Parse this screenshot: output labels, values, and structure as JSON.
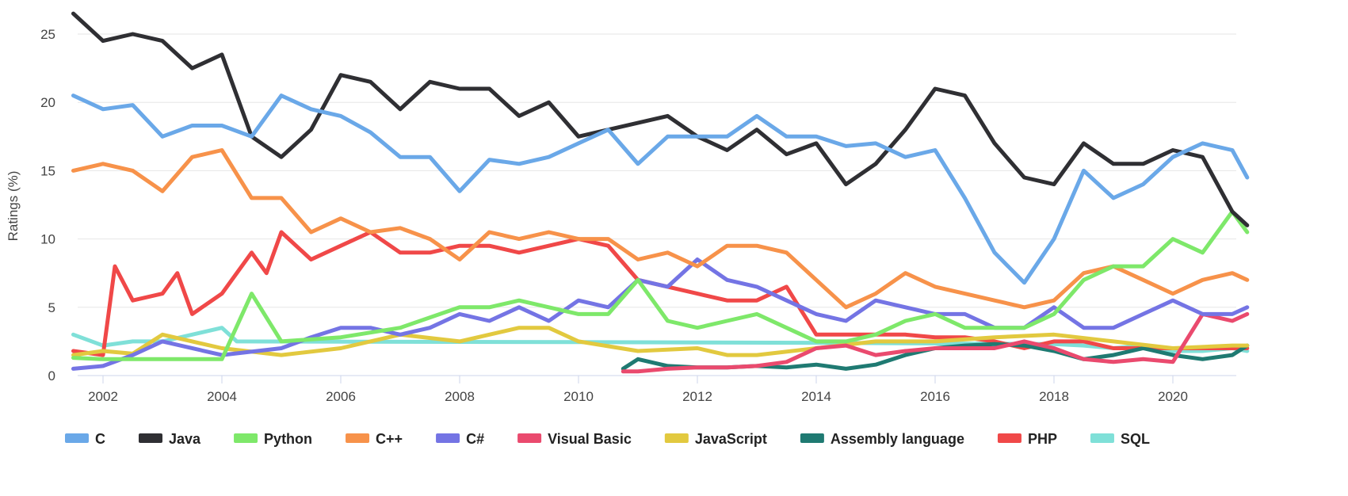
{
  "chart_data": {
    "type": "line",
    "title": "",
    "xlabel": "",
    "ylabel": "Ratings (%)",
    "xlim": [
      2001.5,
      2021.3
    ],
    "ylim": [
      0,
      25
    ],
    "yticks": [
      "0",
      "5",
      "10",
      "15",
      "20",
      "25"
    ],
    "xticks": [
      "2002",
      "2004",
      "2006",
      "2008",
      "2010",
      "2012",
      "2014",
      "2016",
      "2018",
      "2020"
    ],
    "grid": "horizontal",
    "legend_position": "bottom",
    "series": [
      {
        "name": "C",
        "color": "#6aa8e8",
        "x": [
          2001.5,
          2002,
          2002.5,
          2003,
          2003.5,
          2004,
          2004.5,
          2005,
          2005.5,
          2006,
          2006.5,
          2007,
          2007.5,
          2008,
          2008.5,
          2009,
          2009.5,
          2010,
          2010.5,
          2011,
          2011.5,
          2012,
          2012.5,
          2013,
          2013.5,
          2014,
          2014.5,
          2015,
          2015.5,
          2016,
          2016.5,
          2017,
          2017.5,
          2018,
          2018.5,
          2019,
          2019.5,
          2020,
          2020.5,
          2021,
          2021.25
        ],
        "y": [
          20.5,
          19.5,
          19.8,
          17.5,
          18.3,
          18.3,
          17.5,
          20.5,
          19.5,
          19,
          17.8,
          16,
          16,
          13.5,
          15.8,
          15.5,
          16,
          17,
          18,
          15.5,
          17.5,
          17.5,
          17.5,
          19,
          17.5,
          17.5,
          16.8,
          17,
          16,
          16.5,
          13,
          9,
          6.8,
          10,
          15,
          13,
          14,
          16,
          17,
          16.5,
          14.5
        ]
      },
      {
        "name": "Java",
        "color": "#2f2f33",
        "x": [
          2001.5,
          2002,
          2002.5,
          2003,
          2003.5,
          2004,
          2004.5,
          2005,
          2005.5,
          2006,
          2006.5,
          2007,
          2007.5,
          2008,
          2008.5,
          2009,
          2009.5,
          2010,
          2010.5,
          2011,
          2011.5,
          2012,
          2012.5,
          2013,
          2013.5,
          2014,
          2014.5,
          2015,
          2015.5,
          2016,
          2016.5,
          2017,
          2017.5,
          2018,
          2018.5,
          2019,
          2019.5,
          2020,
          2020.5,
          2021,
          2021.25
        ],
        "y": [
          26.5,
          24.5,
          25,
          24.5,
          22.5,
          23.5,
          17.5,
          16,
          18,
          22,
          21.5,
          19.5,
          21.5,
          21,
          21,
          19,
          20,
          17.5,
          18,
          18.5,
          19,
          17.5,
          16.5,
          18,
          16.2,
          17,
          14,
          15.5,
          18,
          21,
          20.5,
          17,
          14.5,
          14,
          17,
          15.5,
          15.5,
          16.5,
          16,
          12,
          11
        ]
      },
      {
        "name": "Python",
        "color": "#7ee86a",
        "x": [
          2001.5,
          2002,
          2003,
          2004,
          2004.5,
          2005,
          2006,
          2007,
          2008,
          2008.5,
          2009,
          2009.5,
          2010,
          2010.5,
          2011,
          2011.5,
          2012,
          2012.5,
          2013,
          2013.5,
          2014,
          2014.5,
          2015,
          2015.5,
          2016,
          2016.5,
          2017,
          2017.5,
          2018,
          2018.5,
          2019,
          2019.5,
          2020,
          2020.5,
          2021,
          2021.25
        ],
        "y": [
          1.3,
          1.2,
          1.2,
          1.2,
          6,
          2.5,
          2.8,
          3.5,
          5,
          5,
          5.5,
          5,
          4.5,
          4.5,
          7,
          4,
          3.5,
          4,
          4.5,
          3.5,
          2.5,
          2.5,
          3,
          4,
          4.5,
          3.5,
          3.5,
          3.5,
          4.5,
          7,
          8,
          8,
          10,
          9,
          12,
          10.5
        ]
      },
      {
        "name": "C++",
        "color": "#f7924a",
        "x": [
          2001.5,
          2002,
          2002.5,
          2003,
          2003.5,
          2004,
          2004.5,
          2005,
          2005.5,
          2006,
          2006.5,
          2007,
          2007.5,
          2008,
          2008.5,
          2009,
          2009.5,
          2010,
          2010.5,
          2011,
          2011.5,
          2012,
          2012.5,
          2013,
          2013.5,
          2014,
          2014.5,
          2015,
          2015.5,
          2016,
          2016.5,
          2017,
          2017.5,
          2018,
          2018.5,
          2019,
          2019.5,
          2020,
          2020.5,
          2021,
          2021.25
        ],
        "y": [
          15,
          15.5,
          15,
          13.5,
          16,
          16.5,
          13,
          13,
          10.5,
          11.5,
          10.5,
          10.8,
          10,
          8.5,
          10.5,
          10,
          10.5,
          10,
          10,
          8.5,
          9,
          8,
          9.5,
          9.5,
          9,
          7,
          5,
          6,
          7.5,
          6.5,
          6,
          5.5,
          5,
          5.5,
          7.5,
          8,
          7,
          6,
          7,
          7.5,
          7
        ]
      },
      {
        "name": "C#",
        "color": "#7474e4",
        "x": [
          2001.5,
          2002,
          2002.5,
          2003,
          2004,
          2005,
          2005.5,
          2006,
          2006.5,
          2007,
          2007.5,
          2008,
          2008.5,
          2009,
          2009.5,
          2010,
          2010.5,
          2011,
          2011.5,
          2012,
          2012.5,
          2013,
          2013.5,
          2014,
          2014.5,
          2015,
          2015.5,
          2016,
          2016.5,
          2017,
          2017.5,
          2018,
          2018.5,
          2019,
          2019.5,
          2020,
          2020.5,
          2021,
          2021.25
        ],
        "y": [
          0.5,
          0.7,
          1.5,
          2.5,
          1.5,
          2,
          2.8,
          3.5,
          3.5,
          3,
          3.5,
          4.5,
          4,
          5,
          4,
          5.5,
          5,
          7,
          6.5,
          8.5,
          7,
          6.5,
          5.5,
          4.5,
          4,
          5.5,
          5,
          4.5,
          4.5,
          3.5,
          3.5,
          5,
          3.5,
          3.5,
          4.5,
          5.5,
          4.5,
          4.5,
          5
        ]
      },
      {
        "name": "Visual Basic",
        "color": "#ea4a6e",
        "x": [
          2010.75,
          2011,
          2011.5,
          2012,
          2012.5,
          2013,
          2013.5,
          2014,
          2014.5,
          2015,
          2015.5,
          2016,
          2016.5,
          2017,
          2017.5,
          2018,
          2018.5,
          2019,
          2019.5,
          2020,
          2020.5,
          2021,
          2021.25
        ],
        "y": [
          0.3,
          0.3,
          0.5,
          0.6,
          0.6,
          0.7,
          1,
          2,
          2.2,
          1.5,
          1.8,
          2,
          2,
          2,
          2.5,
          2,
          1.2,
          1,
          1.2,
          1,
          4.5,
          4,
          4.5
        ]
      },
      {
        "name": "JavaScript",
        "color": "#e2c93f",
        "x": [
          2001.5,
          2002,
          2002.5,
          2003,
          2004,
          2005,
          2006,
          2007,
          2008,
          2009,
          2009.5,
          2010,
          2011,
          2012,
          2012.5,
          2013,
          2014,
          2015,
          2016,
          2017,
          2018,
          2019,
          2020,
          2021,
          2021.25
        ],
        "y": [
          1.5,
          1.8,
          1.6,
          3,
          2,
          1.5,
          2,
          3,
          2.5,
          3.5,
          3.5,
          2.5,
          1.8,
          2,
          1.5,
          1.5,
          2,
          2.5,
          2.5,
          2.8,
          3,
          2.5,
          2,
          2.2,
          2.2
        ]
      },
      {
        "name": "Assembly language",
        "color": "#1f7a72",
        "x": [
          2010.75,
          2011,
          2011.5,
          2012,
          2012.5,
          2013,
          2013.5,
          2014,
          2014.5,
          2015,
          2015.5,
          2016,
          2016.5,
          2017,
          2017.5,
          2018,
          2018.5,
          2019,
          2019.5,
          2020,
          2020.5,
          2021,
          2021.25
        ],
        "y": [
          0.5,
          1.2,
          0.7,
          0.6,
          0.6,
          0.7,
          0.6,
          0.8,
          0.5,
          0.8,
          1.5,
          2,
          2.2,
          2.3,
          2.2,
          1.8,
          1.2,
          1.5,
          2,
          1.5,
          1.2,
          1.5,
          2.2
        ]
      },
      {
        "name": "PHP",
        "color": "#f04848",
        "x": [
          2001.5,
          2002,
          2002.2,
          2002.5,
          2003,
          2003.25,
          2003.5,
          2004,
          2004.5,
          2004.75,
          2005,
          2005.5,
          2006,
          2006.5,
          2007,
          2007.5,
          2008,
          2008.5,
          2009,
          2009.5,
          2010,
          2010.5,
          2011,
          2011.5,
          2012,
          2012.5,
          2013,
          2013.5,
          2014,
          2014.5,
          2015,
          2015.5,
          2016,
          2016.5,
          2017,
          2017.5,
          2018,
          2018.5,
          2019,
          2019.5,
          2020,
          2020.5,
          2021,
          2021.25
        ],
        "y": [
          1.8,
          1.5,
          8,
          5.5,
          6,
          7.5,
          4.5,
          6,
          9,
          7.5,
          10.5,
          8.5,
          9.5,
          10.5,
          9,
          9,
          9.5,
          9.5,
          9,
          9.5,
          10,
          9.5,
          7,
          6.5,
          6,
          5.5,
          5.5,
          6.5,
          3,
          3,
          3,
          3,
          2.8,
          2.8,
          2.5,
          2,
          2.5,
          2.5,
          2,
          2,
          2,
          2,
          2,
          2
        ]
      },
      {
        "name": "SQL",
        "color": "#7fe0d8",
        "x": [
          2001.5,
          2002,
          2002.5,
          2003,
          2003.5,
          2004,
          2004.25,
          2010,
          2014,
          2018,
          2018.5,
          2019,
          2019.5,
          2020,
          2020.5,
          2021,
          2021.25
        ],
        "y": [
          3,
          2.2,
          2.5,
          2.5,
          3,
          3.5,
          2.5,
          2.45,
          2.4,
          2.3,
          2.2,
          2,
          2.2,
          1.8,
          1.8,
          2,
          1.8
        ]
      }
    ]
  }
}
